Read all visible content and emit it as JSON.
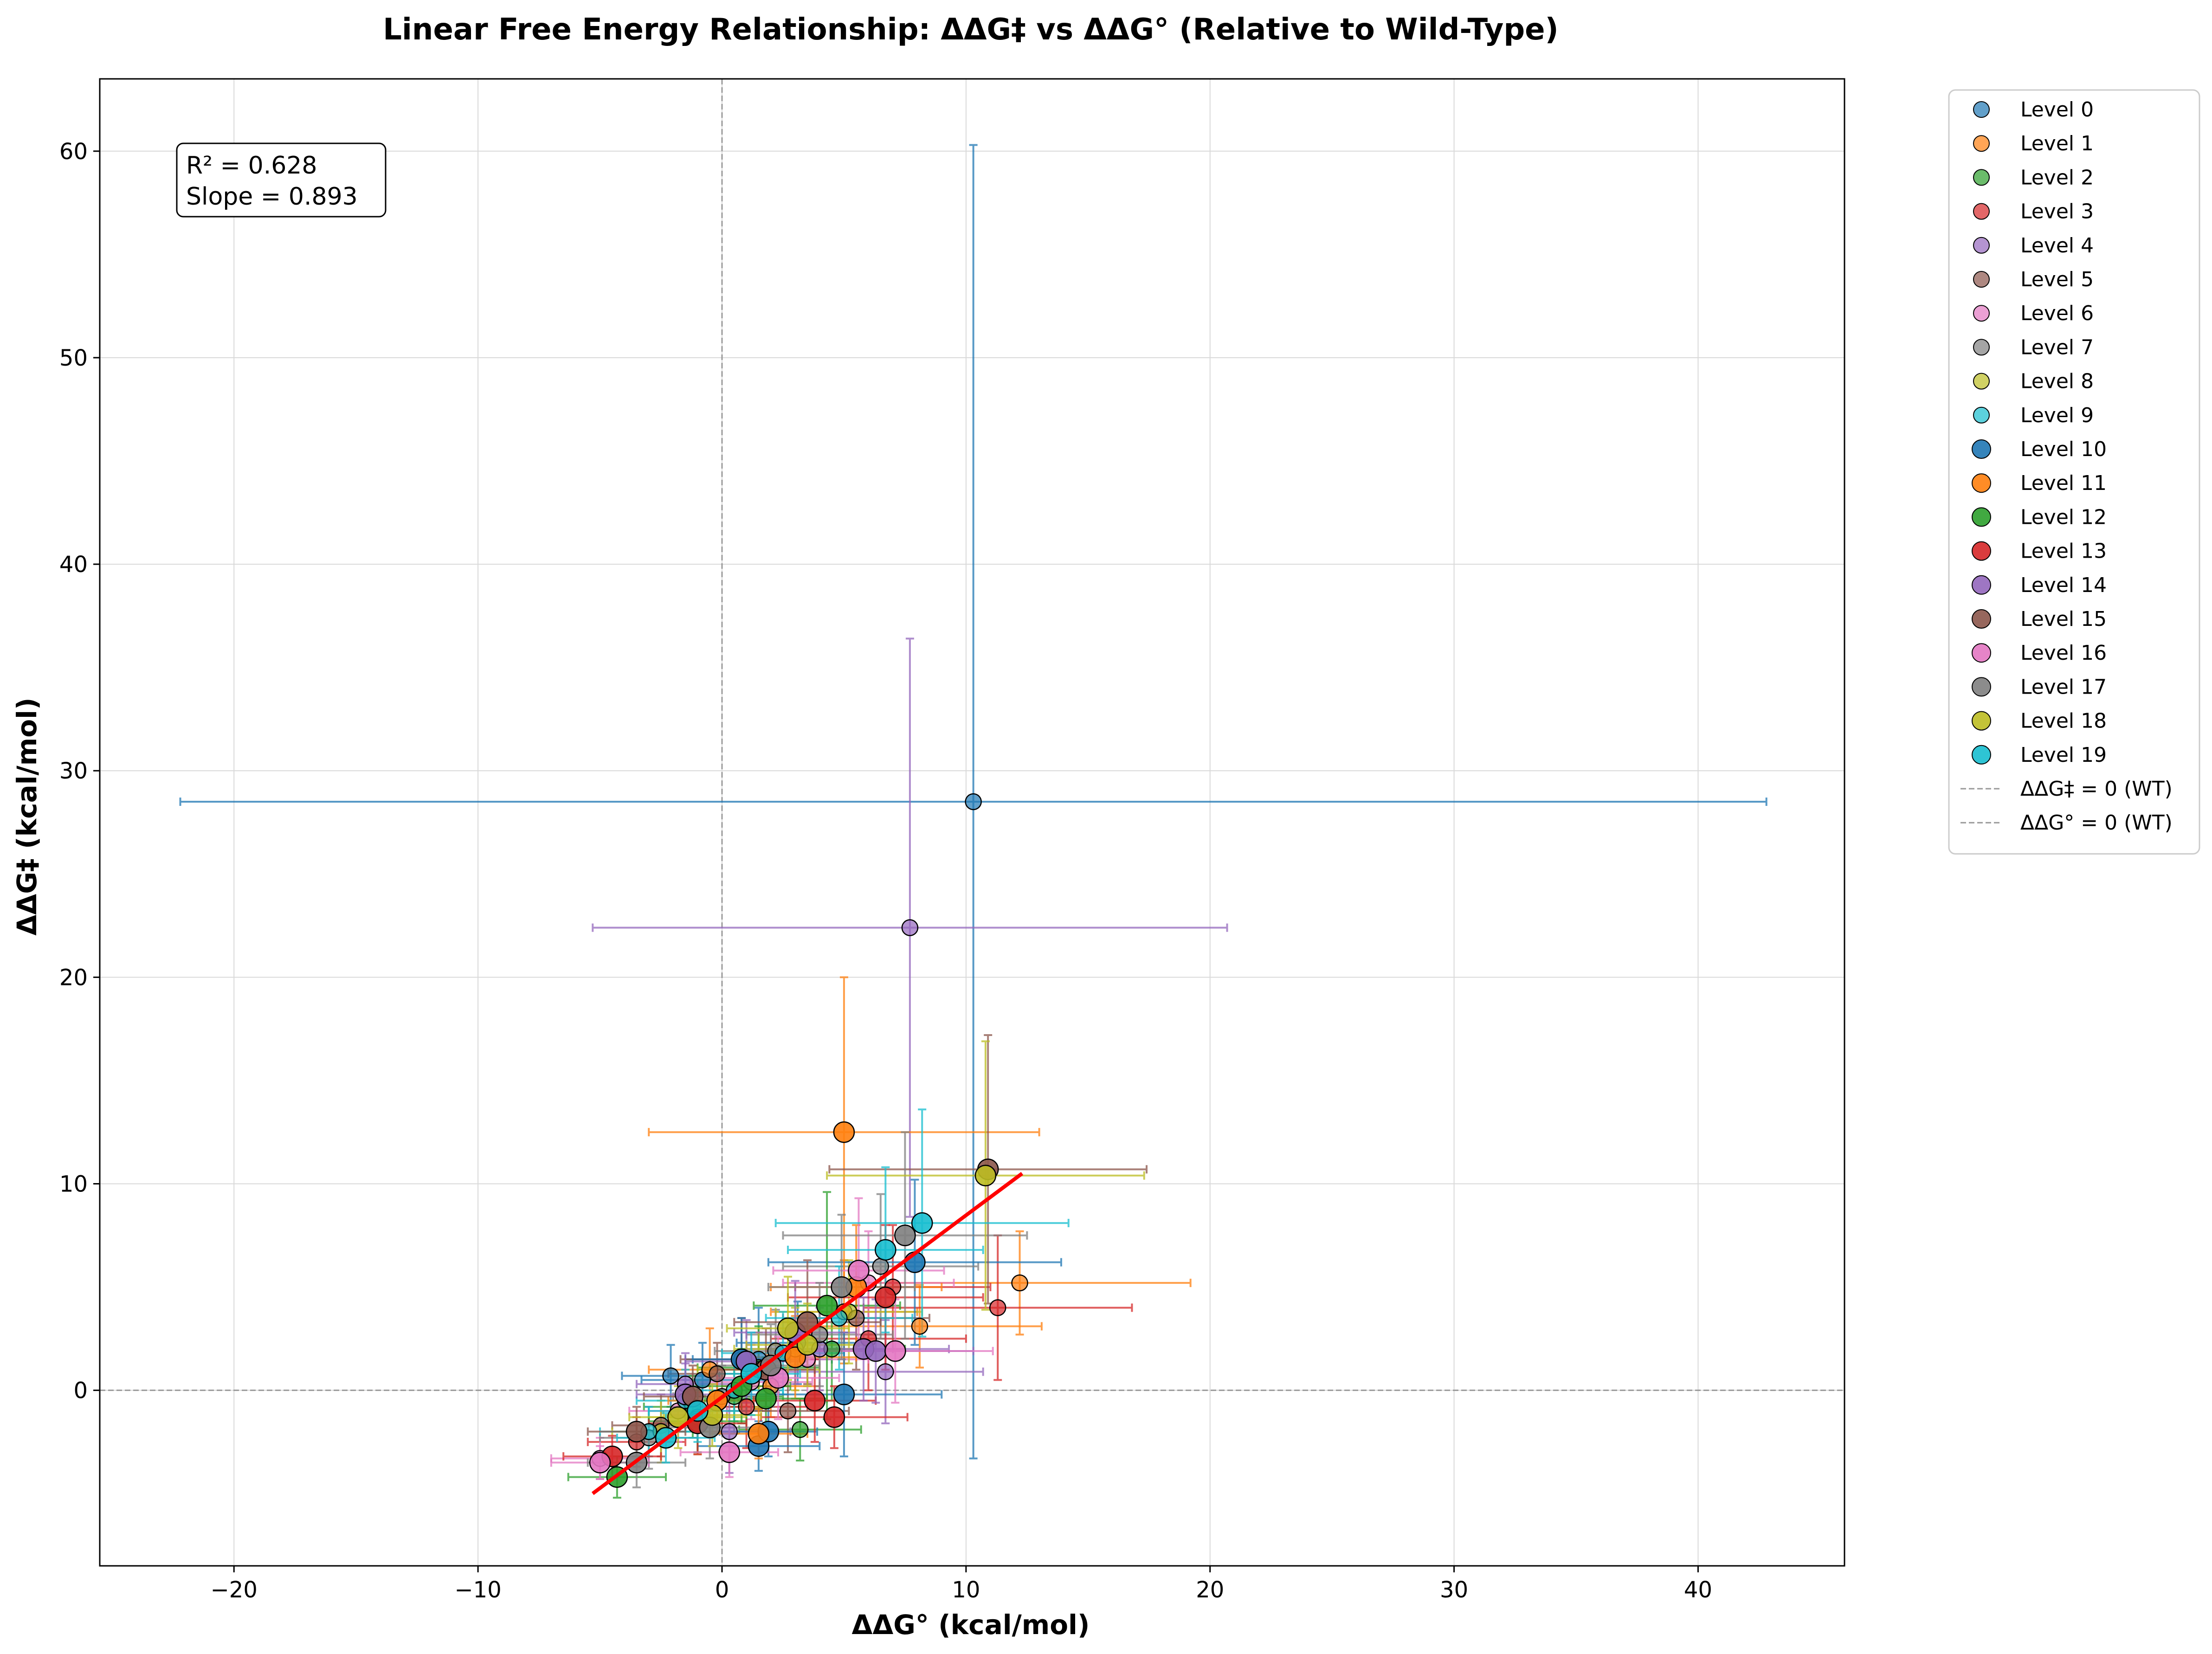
{
  "chart_data": {
    "type": "scatter",
    "title": "Linear Free Energy Relationship: ΔΔG‡ vs ΔΔG° (Relative to Wild-Type)",
    "xlabel": "ΔΔG° (kcal/mol)",
    "ylabel": "ΔΔG‡ (kcal/mol)",
    "xlim": [
      -25.5,
      46
    ],
    "ylim": [
      -8.5,
      63.5
    ],
    "xticks": [
      -20,
      -10,
      0,
      10,
      20,
      30,
      40
    ],
    "yticks": [
      0,
      10,
      20,
      30,
      40,
      50,
      60
    ],
    "xtick_labels": [
      "−20",
      "−10",
      "0",
      "10",
      "20",
      "30",
      "40"
    ],
    "ytick_labels": [
      "0",
      "10",
      "20",
      "30",
      "40",
      "50",
      "60"
    ],
    "grid": true,
    "legend_position": "outside-right",
    "annotation": {
      "r2_text": "R² = 0.628",
      "slope_text": "Slope = 0.893"
    },
    "fit_line": {
      "x": [
        -5.3,
        12.3
      ],
      "y": [
        -5.0,
        10.5
      ],
      "color": "#ff0000"
    },
    "reference_lines": [
      {
        "name": "ΔΔG‡ = 0 (WT)",
        "orientation": "horizontal",
        "value": 0
      },
      {
        "name": "ΔΔG° = 0 (WT)",
        "orientation": "vertical",
        "value": 0
      }
    ],
    "series": [
      {
        "name": "Level 0",
        "color": "#1f77b4",
        "size": "small",
        "points": [
          [
            10.3,
            28.5,
            32.5,
            31.8
          ],
          [
            1.5,
            1.5,
            3.0,
            2.5
          ],
          [
            -2.1,
            0.7,
            2.0,
            1.5
          ],
          [
            -0.8,
            0.5,
            2.5,
            1.8
          ],
          [
            3.1,
            2.3,
            2.5,
            2.0
          ]
        ]
      },
      {
        "name": "Level 1",
        "color": "#ff7f0e",
        "size": "small",
        "points": [
          [
            12.2,
            5.2,
            7.0,
            2.5
          ],
          [
            8.1,
            3.1,
            5.0,
            2.0
          ],
          [
            -0.5,
            1.0,
            2.5,
            2.0
          ],
          [
            2.0,
            0.2,
            2.0,
            1.5
          ],
          [
            5.0,
            3.8,
            3.0,
            2.5
          ]
        ]
      },
      {
        "name": "Level 2",
        "color": "#2ca02c",
        "size": "small",
        "points": [
          [
            3.2,
            -1.9,
            2.5,
            1.5
          ],
          [
            0.5,
            -0.3,
            2.0,
            1.8
          ],
          [
            1.5,
            1.1,
            2.5,
            2.0
          ],
          [
            -1.2,
            -0.8,
            2.0,
            1.5
          ],
          [
            4.5,
            2.0,
            3.0,
            2.5
          ]
        ]
      },
      {
        "name": "Level 3",
        "color": "#d62728",
        "size": "small",
        "points": [
          [
            11.3,
            4.0,
            5.5,
            3.5
          ],
          [
            6.0,
            2.5,
            4.0,
            2.5
          ],
          [
            -3.5,
            -2.5,
            2.0,
            1.2
          ],
          [
            1.0,
            -0.8,
            2.5,
            2.0
          ],
          [
            7.0,
            5.0,
            4.0,
            3.0
          ]
        ]
      },
      {
        "name": "Level 4",
        "color": "#9467bd",
        "size": "small",
        "points": [
          [
            7.7,
            22.4,
            13.0,
            14.0
          ],
          [
            6.7,
            0.9,
            4.0,
            2.5
          ],
          [
            -1.5,
            0.3,
            2.0,
            1.5
          ],
          [
            0.3,
            -2.0,
            2.5,
            2.0
          ],
          [
            4.0,
            2.0,
            3.0,
            2.0
          ]
        ]
      },
      {
        "name": "Level 5",
        "color": "#8c564b",
        "size": "small",
        "points": [
          [
            2.7,
            -1.0,
            2.5,
            2.0
          ],
          [
            -2.5,
            -1.7,
            2.0,
            1.5
          ],
          [
            0.8,
            1.5,
            2.5,
            2.0
          ],
          [
            5.5,
            3.5,
            3.0,
            2.5
          ],
          [
            -0.2,
            0.8,
            2.0,
            1.5
          ]
        ]
      },
      {
        "name": "Level 6",
        "color": "#e377c2",
        "size": "small",
        "points": [
          [
            -5.0,
            -3.3,
            2.0,
            1.0
          ],
          [
            3.5,
            1.5,
            2.5,
            2.0
          ],
          [
            1.2,
            0.4,
            2.5,
            1.8
          ],
          [
            6.0,
            5.2,
            3.5,
            2.5
          ],
          [
            -1.8,
            -1.0,
            2.0,
            1.5
          ]
        ]
      },
      {
        "name": "Level 7",
        "color": "#7f7f7f",
        "size": "small",
        "points": [
          [
            4.0,
            2.7,
            3.0,
            2.5
          ],
          [
            -3.0,
            -2.3,
            2.0,
            1.5
          ],
          [
            0.0,
            -0.3,
            2.0,
            1.5
          ],
          [
            2.2,
            1.9,
            2.5,
            2.0
          ],
          [
            6.5,
            6.0,
            4.0,
            3.5
          ]
        ]
      },
      {
        "name": "Level 8",
        "color": "#bcbd22",
        "size": "small",
        "points": [
          [
            -1.0,
            -1.3,
            2.0,
            1.8
          ],
          [
            3.0,
            2.0,
            2.5,
            2.0
          ],
          [
            1.5,
            1.0,
            2.5,
            1.8
          ],
          [
            -2.5,
            -2.0,
            2.0,
            1.5
          ],
          [
            5.2,
            3.8,
            3.0,
            2.5
          ]
        ]
      },
      {
        "name": "Level 9",
        "color": "#17becf",
        "size": "small",
        "points": [
          [
            2.5,
            1.8,
            2.5,
            2.0
          ],
          [
            -1.5,
            -0.5,
            2.0,
            1.5
          ],
          [
            0.5,
            0.0,
            2.0,
            1.5
          ],
          [
            4.8,
            3.5,
            3.0,
            2.5
          ],
          [
            -3.0,
            -2.0,
            2.0,
            1.2
          ]
        ]
      },
      {
        "name": "Level 10",
        "color": "#1f77b4",
        "size": "large",
        "points": [
          [
            1.5,
            -2.7,
            2.5,
            1.2
          ],
          [
            1.9,
            -2.0,
            2.0,
            1.2
          ],
          [
            7.9,
            6.2,
            6.0,
            4.0
          ],
          [
            5.0,
            -0.2,
            4.0,
            3.0
          ],
          [
            0.8,
            1.5,
            2.0,
            2.0
          ]
        ]
      },
      {
        "name": "Level 11",
        "color": "#ff7f0e",
        "size": "large",
        "points": [
          [
            5.0,
            12.5,
            8.0,
            7.5
          ],
          [
            1.5,
            -2.1,
            2.0,
            1.2
          ],
          [
            -0.2,
            -0.5,
            2.0,
            1.5
          ],
          [
            3.0,
            1.6,
            2.5,
            2.0
          ],
          [
            5.5,
            5.0,
            3.5,
            3.0
          ]
        ]
      },
      {
        "name": "Level 12",
        "color": "#2ca02c",
        "size": "large",
        "points": [
          [
            -4.3,
            -4.2,
            2.0,
            1.0
          ],
          [
            0.8,
            0.2,
            2.0,
            1.8
          ],
          [
            1.8,
            -0.4,
            2.5,
            2.0
          ],
          [
            4.3,
            4.1,
            3.0,
            5.5
          ],
          [
            -1.0,
            -1.5,
            2.0,
            1.5
          ]
        ]
      },
      {
        "name": "Level 13",
        "color": "#d62728",
        "size": "large",
        "points": [
          [
            -4.5,
            -3.2,
            2.0,
            1.0
          ],
          [
            -1.0,
            -1.6,
            2.0,
            1.5
          ],
          [
            4.6,
            -1.3,
            3.0,
            1.5
          ],
          [
            6.7,
            4.5,
            4.0,
            3.5
          ],
          [
            3.8,
            -0.5,
            2.5,
            2.0
          ]
        ]
      },
      {
        "name": "Level 14",
        "color": "#9467bd",
        "size": "large",
        "points": [
          [
            5.8,
            2.0,
            3.5,
            2.5
          ],
          [
            1.0,
            1.4,
            2.5,
            2.0
          ],
          [
            -1.5,
            -0.2,
            2.0,
            1.5
          ],
          [
            3.0,
            2.8,
            2.5,
            2.5
          ],
          [
            6.3,
            1.9,
            4.0,
            2.5
          ]
        ]
      },
      {
        "name": "Level 15",
        "color": "#8c564b",
        "size": "large",
        "points": [
          [
            10.9,
            10.7,
            6.5,
            6.5
          ],
          [
            -3.5,
            -2.0,
            2.0,
            1.2
          ],
          [
            3.5,
            3.3,
            3.0,
            3.0
          ],
          [
            1.8,
            1.0,
            2.0,
            2.0
          ],
          [
            -1.2,
            -0.3,
            2.0,
            1.5
          ]
        ]
      },
      {
        "name": "Level 16",
        "color": "#e377c2",
        "size": "large",
        "points": [
          [
            -5.0,
            -3.5,
            2.0,
            0.8
          ],
          [
            0.3,
            -3.0,
            2.0,
            1.2
          ],
          [
            7.1,
            1.9,
            4.0,
            2.5
          ],
          [
            5.6,
            5.8,
            3.5,
            3.5
          ],
          [
            2.3,
            0.6,
            2.5,
            2.0
          ]
        ]
      },
      {
        "name": "Level 17",
        "color": "#7f7f7f",
        "size": "large",
        "points": [
          [
            7.5,
            7.5,
            5.0,
            5.0
          ],
          [
            -3.5,
            -3.5,
            2.0,
            1.2
          ],
          [
            4.9,
            5.0,
            3.0,
            3.5
          ],
          [
            -0.5,
            -1.8,
            2.0,
            1.5
          ],
          [
            2.0,
            1.2,
            2.0,
            2.0
          ]
        ]
      },
      {
        "name": "Level 18",
        "color": "#bcbd22",
        "size": "large",
        "points": [
          [
            10.8,
            10.4,
            6.5,
            6.5
          ],
          [
            2.7,
            3.0,
            2.5,
            2.5
          ],
          [
            -1.8,
            -1.3,
            2.0,
            1.5
          ],
          [
            -0.4,
            -1.2,
            2.0,
            1.5
          ],
          [
            3.5,
            2.2,
            2.5,
            2.0
          ]
        ]
      },
      {
        "name": "Level 19",
        "color": "#17becf",
        "size": "large",
        "points": [
          [
            8.2,
            8.1,
            6.0,
            5.5
          ],
          [
            -2.3,
            -2.3,
            2.0,
            1.2
          ],
          [
            6.7,
            6.8,
            4.0,
            4.0
          ],
          [
            1.2,
            0.8,
            2.0,
            2.0
          ],
          [
            -1.0,
            -1.0,
            2.0,
            1.5
          ]
        ]
      }
    ]
  }
}
